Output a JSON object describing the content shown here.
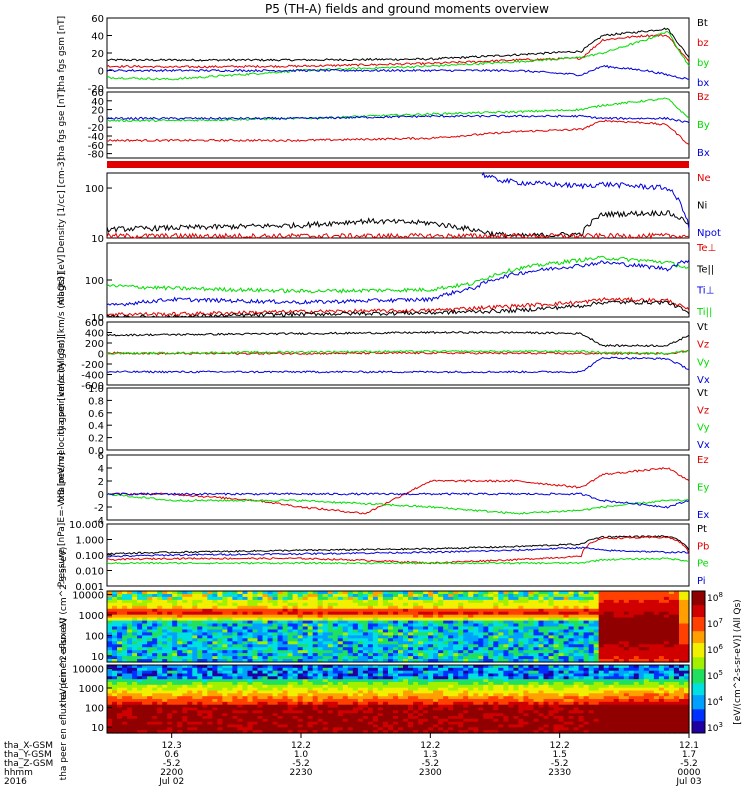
{
  "title": "P5 (TH-A) fields and ground moments overview",
  "colors": {
    "black": "#000000",
    "red": "#e00000",
    "green": "#00dd00",
    "blue": "#0000dd",
    "bg": "#ffffff"
  },
  "time_axis": {
    "start": "2016-07-02 21:45",
    "end": "2016-07-03 00:00",
    "ticks": [
      "2200",
      "2230",
      "2300",
      "2330",
      "0000"
    ],
    "row_labels": [
      "tha_X-GSM",
      "tha_Y-GSM",
      "tha_Z-GSM",
      "hhmm",
      "2016"
    ],
    "tick_values": [
      [
        "12.3",
        "0.6",
        "-5.2",
        "2200",
        "Jul 02"
      ],
      [
        "12.2",
        "1.0",
        "-5.2",
        "2230",
        ""
      ],
      [
        "12.2",
        "1.3",
        "-5.2",
        "2300",
        ""
      ],
      [
        "12.2",
        "1.5",
        "-5.2",
        "2330",
        ""
      ],
      [
        "12.1",
        "1.7",
        "-5.2",
        "0000",
        "Jul 03"
      ]
    ]
  },
  "chart_data": [
    {
      "type": "line",
      "ylabel": "tha fgs gsm [nT]",
      "ylim": [
        -20,
        60
      ],
      "yticks": [
        "60",
        "40",
        "20",
        "0",
        "-20"
      ],
      "legend": [
        {
          "name": "Bt",
          "color": "black"
        },
        {
          "name": "bz",
          "color": "red"
        },
        {
          "name": "by",
          "color": "green"
        },
        {
          "name": "bx",
          "color": "blue"
        }
      ],
      "series": [
        {
          "name": "Bt",
          "color": "black",
          "x": [
            "21:45",
            "22:00",
            "22:30",
            "23:00",
            "23:20",
            "23:35",
            "23:40",
            "23:50",
            "23:55",
            "00:00"
          ],
          "y": [
            12,
            12,
            12,
            13,
            18,
            22,
            40,
            45,
            48,
            15
          ]
        },
        {
          "name": "bz",
          "color": "red",
          "x": [
            "21:45",
            "22:00",
            "22:30",
            "23:00",
            "23:20",
            "23:35",
            "23:40",
            "23:50",
            "23:55",
            "00:00"
          ],
          "y": [
            5,
            4,
            5,
            8,
            12,
            14,
            35,
            40,
            40,
            10
          ]
        },
        {
          "name": "by",
          "color": "green",
          "x": [
            "21:45",
            "22:00",
            "22:30",
            "23:00",
            "23:20",
            "23:35",
            "23:40",
            "23:50",
            "23:55",
            "00:00"
          ],
          "y": [
            -8,
            -10,
            0,
            5,
            10,
            15,
            20,
            35,
            45,
            5
          ]
        },
        {
          "name": "bx",
          "color": "blue",
          "x": [
            "21:45",
            "22:00",
            "22:30",
            "23:00",
            "23:20",
            "23:35",
            "23:40",
            "23:50",
            "23:55",
            "00:00"
          ],
          "y": [
            0,
            0,
            0,
            0,
            0,
            -5,
            5,
            0,
            -5,
            -10
          ]
        }
      ]
    },
    {
      "type": "line",
      "ylabel": "tha fgs gse [nT]",
      "ylim": [
        -90,
        60
      ],
      "yticks": [
        "60",
        "40",
        "20",
        "0",
        "-20",
        "-40",
        "-60",
        "-80"
      ],
      "legend": [
        {
          "name": "Bz",
          "color": "red"
        },
        {
          "name": "By",
          "color": "green"
        },
        {
          "name": "Bx",
          "color": "blue"
        }
      ],
      "series": [
        {
          "name": "Bz",
          "color": "red",
          "x": [
            "21:45",
            "22:00",
            "22:30",
            "23:00",
            "23:20",
            "23:35",
            "23:40",
            "23:50",
            "23:55",
            "00:00"
          ],
          "y": [
            -50,
            -50,
            -50,
            -45,
            -30,
            -25,
            -5,
            -10,
            -15,
            -60
          ]
        },
        {
          "name": "By",
          "color": "green",
          "x": [
            "21:45",
            "22:00",
            "22:30",
            "23:00",
            "23:20",
            "23:35",
            "23:40",
            "23:50",
            "23:55",
            "00:00"
          ],
          "y": [
            -5,
            -5,
            0,
            10,
            15,
            20,
            30,
            40,
            45,
            0
          ]
        },
        {
          "name": "Bx",
          "color": "blue",
          "x": [
            "21:45",
            "22:00",
            "22:30",
            "23:00",
            "23:20",
            "23:35",
            "23:40",
            "23:50",
            "23:55",
            "00:00"
          ],
          "y": [
            0,
            0,
            0,
            5,
            5,
            5,
            0,
            0,
            0,
            -10
          ]
        }
      ]
    },
    {
      "type": "line",
      "ylabel": "Density [1/cc] [cm-3]",
      "ylim": [
        10,
        200
      ],
      "log": true,
      "yticks": [
        "100",
        "10"
      ],
      "legend": [
        {
          "name": "Ne",
          "color": "red"
        },
        {
          "name": "Ni",
          "color": "black"
        },
        {
          "name": "Npot",
          "color": "blue"
        }
      ],
      "series": [
        {
          "name": "Ni",
          "color": "black",
          "x": [
            "21:45",
            "22:00",
            "22:30",
            "22:45",
            "23:00",
            "23:15",
            "23:20",
            "23:35",
            "23:40",
            "23:55",
            "00:00"
          ],
          "y": [
            15,
            16,
            18,
            22,
            20,
            12,
            11,
            12,
            30,
            32,
            20
          ]
        },
        {
          "name": "Ne",
          "color": "red",
          "x": [
            "21:45",
            "22:00",
            "22:30",
            "23:00",
            "23:15",
            "23:35",
            "23:40",
            "23:55",
            "00:00"
          ],
          "y": [
            11,
            11,
            11,
            11,
            11,
            11,
            11,
            11,
            11
          ]
        },
        {
          "name": "Npot",
          "color": "blue",
          "x": [
            "23:12",
            "23:15",
            "23:20",
            "23:35",
            "23:40",
            "23:55",
            "00:00"
          ],
          "y": [
            190,
            150,
            130,
            110,
            120,
            100,
            15
          ]
        }
      ]
    },
    {
      "type": "line",
      "ylabel": "magt3 [eV]",
      "ylim": [
        10,
        1000
      ],
      "log": true,
      "yticks": [
        "100",
        "10"
      ],
      "legend": [
        {
          "name": "Te⊥",
          "color": "red"
        },
        {
          "name": "Te||",
          "color": "black"
        },
        {
          "name": "Ti⊥",
          "color": "blue"
        },
        {
          "name": "Ti||",
          "color": "green"
        }
      ],
      "series": [
        {
          "name": "Ti||",
          "color": "green",
          "x": [
            "21:45",
            "22:00",
            "22:30",
            "23:00",
            "23:10",
            "23:20",
            "23:35",
            "23:40",
            "23:55",
            "00:00"
          ],
          "y": [
            70,
            60,
            50,
            55,
            80,
            200,
            350,
            400,
            300,
            200
          ]
        },
        {
          "name": "Ti⊥",
          "color": "blue",
          "x": [
            "21:45",
            "22:00",
            "22:30",
            "23:00",
            "23:10",
            "23:20",
            "23:35",
            "23:40",
            "23:55",
            "00:00"
          ],
          "y": [
            20,
            30,
            25,
            30,
            60,
            150,
            250,
            300,
            200,
            350
          ]
        },
        {
          "name": "Te⊥",
          "color": "red",
          "x": [
            "21:45",
            "22:00",
            "22:30",
            "23:00",
            "23:20",
            "23:35",
            "23:40",
            "23:55",
            "00:00"
          ],
          "y": [
            12,
            12,
            14,
            15,
            20,
            25,
            30,
            28,
            15
          ]
        },
        {
          "name": "Te||",
          "color": "black",
          "x": [
            "21:45",
            "22:00",
            "22:30",
            "23:00",
            "23:20",
            "23:35",
            "23:40",
            "23:55",
            "00:00"
          ],
          "y": [
            10,
            10,
            12,
            13,
            15,
            20,
            25,
            25,
            12
          ]
        }
      ]
    },
    {
      "type": "line",
      "ylabel": "tha peir velocity gsm [km/s (All Qs)]",
      "ylim": [
        -600,
        600
      ],
      "yticks": [
        "600",
        "400",
        "200",
        "0",
        "-200",
        "-400",
        "-600"
      ],
      "legend": [
        {
          "name": "Vt",
          "color": "black"
        },
        {
          "name": "Vz",
          "color": "red"
        },
        {
          "name": "Vy",
          "color": "green"
        },
        {
          "name": "Vx",
          "color": "blue"
        }
      ],
      "series": [
        {
          "name": "Vt",
          "color": "black",
          "x": [
            "21:45",
            "22:00",
            "22:30",
            "23:00",
            "23:20",
            "23:35",
            "23:40",
            "23:55",
            "00:00"
          ],
          "y": [
            350,
            360,
            380,
            400,
            400,
            380,
            150,
            150,
            350
          ]
        },
        {
          "name": "Vz",
          "color": "red",
          "x": [
            "21:45",
            "22:00",
            "22:30",
            "23:00",
            "23:35",
            "23:40",
            "23:55",
            "00:00"
          ],
          "y": [
            10,
            0,
            0,
            10,
            0,
            0,
            0,
            50
          ]
        },
        {
          "name": "Vy",
          "color": "green",
          "x": [
            "21:45",
            "22:00",
            "22:30",
            "23:00",
            "23:35",
            "23:40",
            "23:55",
            "00:00"
          ],
          "y": [
            0,
            10,
            30,
            40,
            40,
            20,
            0,
            50
          ]
        },
        {
          "name": "Vx",
          "color": "blue",
          "x": [
            "21:45",
            "22:00",
            "22:30",
            "23:00",
            "23:20",
            "23:35",
            "23:40",
            "23:55",
            "00:00"
          ],
          "y": [
            -350,
            -350,
            -350,
            -350,
            -350,
            -350,
            -80,
            -100,
            -300
          ]
        }
      ]
    },
    {
      "type": "line",
      "ylabel": "tha peer velocity gsm [km/s (All Qs)]",
      "ylim": [
        0,
        1
      ],
      "yticks": [
        "1.0",
        "0.8",
        "0.6",
        "0.4",
        "0.2",
        "0.0"
      ],
      "legend": [
        {
          "name": "Vt",
          "color": "black"
        },
        {
          "name": "Vz",
          "color": "red"
        },
        {
          "name": "Vy",
          "color": "green"
        },
        {
          "name": "Vx",
          "color": "blue"
        }
      ],
      "series": []
    },
    {
      "type": "line",
      "ylabel": "E=-VxB [mV/m]",
      "ylim": [
        -4,
        6
      ],
      "yticks": [
        "6",
        "4",
        "2",
        "0",
        "-2",
        "-4"
      ],
      "legend": [
        {
          "name": "Ez",
          "color": "red"
        },
        {
          "name": "Ey",
          "color": "green"
        },
        {
          "name": "Ex",
          "color": "blue"
        }
      ],
      "series": [
        {
          "name": "Ez",
          "color": "red",
          "x": [
            "21:45",
            "22:00",
            "22:20",
            "22:30",
            "22:45",
            "23:00",
            "23:20",
            "23:35",
            "23:40",
            "23:55",
            "00:00"
          ],
          "y": [
            0,
            0,
            -1,
            -2,
            -3,
            2,
            2,
            1,
            3,
            4,
            2
          ]
        },
        {
          "name": "Ey",
          "color": "green",
          "x": [
            "21:45",
            "22:00",
            "22:20",
            "22:30",
            "22:45",
            "23:00",
            "23:20",
            "23:35",
            "23:40",
            "23:55",
            "00:00"
          ],
          "y": [
            0,
            -1,
            -1,
            -1,
            -1.5,
            -2,
            -3,
            -2.5,
            -2,
            -1,
            -1
          ]
        },
        {
          "name": "Ex",
          "color": "blue",
          "x": [
            "21:45",
            "22:00",
            "22:30",
            "23:00",
            "23:20",
            "23:35",
            "23:40",
            "23:55",
            "00:00"
          ],
          "y": [
            0,
            0,
            0,
            0,
            0,
            0,
            -1,
            -2,
            -1
          ]
        }
      ]
    },
    {
      "type": "line",
      "ylabel": "Pressure [nPa]",
      "ylim": [
        0.001,
        10
      ],
      "log": true,
      "yticks": [
        "10.000",
        "1.000",
        "0.100",
        "0.010",
        "0.001"
      ],
      "legend": [
        {
          "name": "Pt",
          "color": "black"
        },
        {
          "name": "Pb",
          "color": "red"
        },
        {
          "name": "Pe",
          "color": "green"
        },
        {
          "name": "Pi",
          "color": "blue"
        }
      ],
      "series": [
        {
          "name": "Pt",
          "color": "black",
          "x": [
            "21:45",
            "22:00",
            "22:30",
            "23:00",
            "23:20",
            "23:35",
            "23:40",
            "23:55",
            "00:00"
          ],
          "y": [
            0.12,
            0.15,
            0.2,
            0.25,
            0.35,
            0.5,
            1.5,
            1.6,
            0.2
          ]
        },
        {
          "name": "Pb",
          "color": "red",
          "x": [
            "21:45",
            "22:00",
            "22:30",
            "23:00",
            "23:20",
            "23:35",
            "23:40",
            "23:55",
            "00:00"
          ],
          "y": [
            0.05,
            0.06,
            0.06,
            0.03,
            0.05,
            0.08,
            1.2,
            1.4,
            0.1
          ]
        },
        {
          "name": "Pe",
          "color": "green",
          "x": [
            "21:45",
            "22:00",
            "22:30",
            "23:00",
            "23:20",
            "23:35",
            "23:40",
            "23:55",
            "00:00"
          ],
          "y": [
            0.03,
            0.03,
            0.03,
            0.03,
            0.03,
            0.03,
            0.05,
            0.06,
            0.04
          ]
        },
        {
          "name": "Pi",
          "color": "blue",
          "x": [
            "21:45",
            "22:00",
            "22:30",
            "23:00",
            "23:20",
            "23:35",
            "23:40",
            "23:55",
            "00:00"
          ],
          "y": [
            0.08,
            0.1,
            0.12,
            0.15,
            0.2,
            0.3,
            0.2,
            0.15,
            0.15
          ]
        }
      ]
    },
    {
      "type": "heatmap",
      "ylabel": "tha peir en eflux eV (cm^2-s-sr-eV)",
      "ylim": [
        5,
        15000
      ],
      "log": true,
      "yticks": [
        "10000",
        "1000",
        "100",
        "10"
      ]
    },
    {
      "type": "heatmap",
      "ylabel": "tha peer en eflux eV (cm^2-s-sr-eV)",
      "ylim": [
        5,
        15000
      ],
      "log": true,
      "yticks": [
        "10000",
        "1000",
        "100",
        "10"
      ]
    }
  ],
  "colorbar": {
    "label": "[eV/(cm^2-s-sr-eV)] (All Qs)",
    "tick_exponents": [
      "8",
      "7",
      "6",
      "5",
      "4",
      "3"
    ]
  }
}
